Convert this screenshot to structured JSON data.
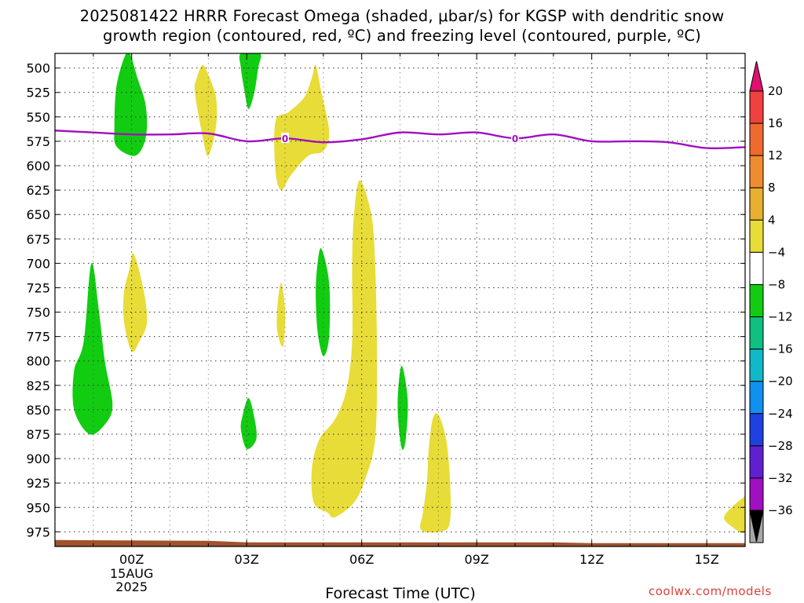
{
  "chart_data": {
    "type": "heatmap",
    "title": "2025081422 HRRR Forecast Omega (shaded, μbar/s) for KGSP with dendritic snow growth region (contoured, red, ºC) and freezing level (contoured, purple, ºC)",
    "title_lines": [
      "2025081422 HRRR Forecast Omega (shaded, μbar/s) for KGSP with dendritic snow",
      "growth region (contoured, red, ºC) and freezing level (contoured, purple, ºC)"
    ],
    "xlabel": "Forecast Time (UTC)",
    "ylabel": "",
    "x_unit": "forecast hour",
    "xlim": [
      -2,
      16
    ],
    "ylim": [
      990,
      485
    ],
    "y_ticks": [
      500,
      525,
      550,
      575,
      600,
      625,
      650,
      675,
      700,
      725,
      750,
      775,
      800,
      825,
      850,
      875,
      900,
      925,
      950,
      975
    ],
    "x_ticks": [
      {
        "x": 0,
        "label": "00Z",
        "sub": [
          "15AUG",
          "2025"
        ]
      },
      {
        "x": 3,
        "label": "03Z"
      },
      {
        "x": 6,
        "label": "06Z"
      },
      {
        "x": 9,
        "label": "09Z"
      },
      {
        "x": 12,
        "label": "12Z"
      },
      {
        "x": 15,
        "label": "15Z"
      }
    ],
    "grid": true,
    "colorbar": {
      "levels": [
        "20",
        "16",
        "12",
        "8",
        "4",
        "−4",
        "−8",
        "−12",
        "−16",
        "−20",
        "−24",
        "−28",
        "−32",
        "−36"
      ],
      "colors": [
        "#e0106e",
        "#f04040",
        "#f06a30",
        "#f08c30",
        "#e8b030",
        "#e8dc38",
        "#ffffff",
        "#11cc11",
        "#10c080",
        "#10b8c8",
        "#1090f0",
        "#2040e0",
        "#6020d0",
        "#a010c0",
        "#a8a8a8",
        "#000000"
      ]
    },
    "freezing_level": {
      "label": "0",
      "color": "#a010c0",
      "points": [
        [
          -2,
          564
        ],
        [
          -1,
          566
        ],
        [
          0,
          568
        ],
        [
          1,
          568
        ],
        [
          2,
          567
        ],
        [
          3,
          575
        ],
        [
          4,
          572
        ],
        [
          5,
          576
        ],
        [
          6,
          573
        ],
        [
          7,
          566
        ],
        [
          8,
          568
        ],
        [
          9,
          566
        ],
        [
          10,
          572
        ],
        [
          11,
          568
        ],
        [
          12,
          575
        ],
        [
          13,
          575
        ],
        [
          14,
          576
        ],
        [
          15,
          582
        ],
        [
          16,
          581
        ]
      ],
      "label_at_x": [
        4,
        10
      ]
    },
    "ground": {
      "color": "#a0522d",
      "top_pressure": 985
    },
    "omega_regions": [
      {
        "name": "green-upper-left",
        "color": "#11cc11",
        "value": "-4 to -8",
        "poly": [
          [
            -0.05,
            485
          ],
          [
            0.15,
            510
          ],
          [
            0.35,
            535
          ],
          [
            0.4,
            560
          ],
          [
            0.3,
            580
          ],
          [
            0.05,
            590
          ],
          [
            -0.4,
            580
          ],
          [
            -0.45,
            560
          ],
          [
            -0.4,
            520
          ],
          [
            -0.2,
            490
          ]
        ]
      },
      {
        "name": "green-top-center",
        "color": "#11cc11",
        "value": "-4 to -8",
        "poly": [
          [
            2.85,
            485
          ],
          [
            3.35,
            485
          ],
          [
            3.3,
            500
          ],
          [
            3.2,
            525
          ],
          [
            3.05,
            542
          ],
          [
            2.95,
            525
          ],
          [
            2.85,
            500
          ]
        ]
      },
      {
        "name": "yellow-upper-left",
        "color": "#e8dc38",
        "value": "4 to 8",
        "poly": [
          [
            1.85,
            497
          ],
          [
            2.0,
            507
          ],
          [
            2.2,
            530
          ],
          [
            2.2,
            560
          ],
          [
            2.0,
            590
          ],
          [
            1.85,
            570
          ],
          [
            1.65,
            525
          ],
          [
            1.7,
            510
          ]
        ]
      },
      {
        "name": "yellow-upper-center",
        "color": "#e8dc38",
        "value": "4 to 8",
        "poly": [
          [
            4.8,
            497
          ],
          [
            4.95,
            525
          ],
          [
            5.15,
            565
          ],
          [
            5.0,
            585
          ],
          [
            4.6,
            590
          ],
          [
            4.15,
            610
          ],
          [
            3.9,
            625
          ],
          [
            3.75,
            605
          ],
          [
            3.75,
            555
          ],
          [
            4.1,
            545
          ],
          [
            4.5,
            530
          ],
          [
            4.7,
            510
          ]
        ]
      },
      {
        "name": "yellow-tall",
        "color": "#e8dc38",
        "value": "4 to 8",
        "poly": [
          [
            5.95,
            615
          ],
          [
            6.25,
            650
          ],
          [
            6.35,
            700
          ],
          [
            6.4,
            800
          ],
          [
            6.35,
            880
          ],
          [
            6.1,
            920
          ],
          [
            5.8,
            945
          ],
          [
            5.3,
            960
          ],
          [
            5.1,
            955
          ],
          [
            4.75,
            945
          ],
          [
            4.7,
            910
          ],
          [
            4.9,
            880
          ],
          [
            5.3,
            860
          ],
          [
            5.6,
            830
          ],
          [
            5.75,
            780
          ],
          [
            5.75,
            700
          ],
          [
            5.8,
            650
          ]
        ]
      },
      {
        "name": "green-left-middle",
        "color": "#11cc11",
        "value": "-4 to -8",
        "poly": [
          [
            -1.05,
            700
          ],
          [
            -0.85,
            750
          ],
          [
            -0.7,
            800
          ],
          [
            -0.5,
            845
          ],
          [
            -0.7,
            865
          ],
          [
            -1.1,
            875
          ],
          [
            -1.5,
            850
          ],
          [
            -1.5,
            810
          ],
          [
            -1.25,
            780
          ]
        ]
      },
      {
        "name": "yellow-left-middle",
        "color": "#e8dc38",
        "value": "4 to 8",
        "poly": [
          [
            0.05,
            690
          ],
          [
            0.3,
            725
          ],
          [
            0.4,
            760
          ],
          [
            0.2,
            780
          ],
          [
            0.0,
            790
          ],
          [
            -0.2,
            760
          ],
          [
            -0.2,
            730
          ],
          [
            -0.05,
            705
          ]
        ]
      },
      {
        "name": "yellow-small",
        "color": "#e8dc38",
        "value": "4 to 8",
        "poly": [
          [
            3.9,
            720
          ],
          [
            4.0,
            750
          ],
          [
            3.95,
            785
          ],
          [
            3.8,
            770
          ],
          [
            3.8,
            745
          ]
        ]
      },
      {
        "name": "green-center-middle",
        "color": "#11cc11",
        "value": "-4 to -8",
        "poly": [
          [
            4.95,
            685
          ],
          [
            5.15,
            720
          ],
          [
            5.15,
            775
          ],
          [
            5.0,
            795
          ],
          [
            4.85,
            770
          ],
          [
            4.8,
            730
          ],
          [
            4.85,
            700
          ]
        ]
      },
      {
        "name": "green-small-lower",
        "color": "#11cc11",
        "value": "-4 to -8",
        "poly": [
          [
            3.05,
            838
          ],
          [
            3.2,
            858
          ],
          [
            3.25,
            880
          ],
          [
            3.0,
            890
          ],
          [
            2.85,
            870
          ],
          [
            2.9,
            855
          ]
        ]
      },
      {
        "name": "green-narrow",
        "color": "#11cc11",
        "value": "-4 to -8",
        "poly": [
          [
            7.05,
            805
          ],
          [
            7.2,
            840
          ],
          [
            7.15,
            880
          ],
          [
            7.05,
            890
          ],
          [
            6.95,
            860
          ],
          [
            6.95,
            830
          ]
        ]
      },
      {
        "name": "yellow-lower-right",
        "color": "#e8dc38",
        "value": "4 to 8",
        "poly": [
          [
            8.0,
            855
          ],
          [
            8.2,
            880
          ],
          [
            8.3,
            920
          ],
          [
            8.3,
            965
          ],
          [
            8.05,
            975
          ],
          [
            7.55,
            973
          ],
          [
            7.6,
            955
          ],
          [
            7.7,
            925
          ],
          [
            7.75,
            890
          ],
          [
            7.85,
            860
          ]
        ]
      },
      {
        "name": "yellow-corner",
        "color": "#e8dc38",
        "value": "4 to 8",
        "poly": [
          [
            15.95,
            940
          ],
          [
            16.0,
            940
          ],
          [
            16.0,
            975
          ],
          [
            15.6,
            968
          ],
          [
            15.45,
            960
          ],
          [
            15.65,
            950
          ]
        ]
      }
    ]
  },
  "credit": "coolwx.com/models"
}
